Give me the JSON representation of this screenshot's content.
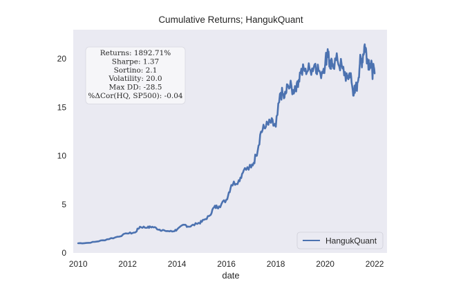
{
  "chart_data": {
    "type": "line",
    "title": "Cumulative Returns; HangukQuant",
    "xlabel": "date",
    "ylabel": "",
    "xlim": [
      2009.8,
      2022.5
    ],
    "ylim": [
      0,
      23
    ],
    "x_ticks": [
      2010,
      2012,
      2014,
      2016,
      2018,
      2020,
      2022
    ],
    "y_ticks": [
      0,
      5,
      10,
      15,
      20
    ],
    "grid": false,
    "background": "#eaeaf2",
    "legend": {
      "position": "lower-right",
      "entries": [
        "HangukQuant"
      ]
    },
    "stats_box": {
      "position": "top-left",
      "lines": [
        "Returns: 1892.71%",
        "Sharpe: 1.37",
        "Sortino: 2.1",
        "Volatility: 20.0",
        "Max DD: -28.5",
        "%ΔCor(HQ, SP500): -0.04"
      ]
    },
    "series": [
      {
        "name": "HangukQuant",
        "color": "#4c72b0",
        "x": [
          2010.0,
          2010.5,
          2011.0,
          2011.5,
          2012.0,
          2012.3,
          2012.5,
          2012.8,
          2013.0,
          2013.3,
          2013.5,
          2013.8,
          2014.0,
          2014.3,
          2014.5,
          2014.8,
          2015.0,
          2015.3,
          2015.5,
          2015.7,
          2016.0,
          2016.2,
          2016.5,
          2016.7,
          2017.0,
          2017.2,
          2017.4,
          2017.6,
          2017.8,
          2018.0,
          2018.2,
          2018.35,
          2018.5,
          2018.7,
          2018.85,
          2019.0,
          2019.2,
          2019.4,
          2019.6,
          2019.8,
          2020.0,
          2020.1,
          2020.2,
          2020.3,
          2020.5,
          2020.7,
          2020.9,
          2021.0,
          2021.1,
          2021.2,
          2021.3,
          2021.4,
          2021.5,
          2021.6,
          2021.7,
          2021.8,
          2021.9,
          2022.0
        ],
        "y": [
          1.0,
          1.05,
          1.3,
          1.6,
          2.0,
          2.1,
          2.7,
          2.6,
          2.7,
          2.4,
          2.3,
          2.2,
          2.4,
          2.9,
          2.7,
          3.0,
          3.2,
          3.8,
          4.7,
          4.8,
          5.5,
          7.0,
          7.5,
          8.5,
          8.8,
          10.0,
          12.5,
          13.0,
          13.4,
          13.0,
          16.5,
          16.0,
          17.2,
          16.8,
          17.5,
          18.5,
          19.0,
          18.8,
          19.5,
          18.5,
          19.5,
          21.0,
          19.0,
          19.5,
          19.8,
          19.0,
          18.0,
          18.5,
          17.0,
          16.5,
          17.5,
          19.5,
          20.0,
          21.5,
          20.0,
          19.5,
          18.8,
          18.5
        ]
      }
    ]
  }
}
